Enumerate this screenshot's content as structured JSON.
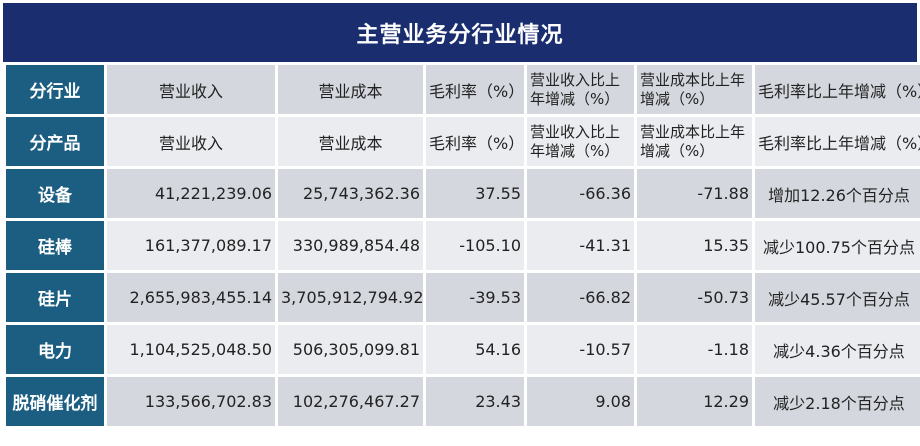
{
  "title": "主营业务分行业情况",
  "rows": [
    {
      "label": "分行业",
      "revenue": "营业收入",
      "cost": "营业成本",
      "margin": "毛利率（%）",
      "rev_change": "营业收入比上年增减（%）",
      "cost_change": "营业成本比上年增减（%）",
      "margin_change": "毛利率比上年增减（%）"
    },
    {
      "label": "分产品",
      "revenue": "营业收入",
      "cost": "营业成本",
      "margin": "毛利率（%）",
      "rev_change": "营业收入比上年增减（%）",
      "cost_change": "营业成本比上年增减（%）",
      "margin_change": "毛利率比上年增减（%）"
    },
    {
      "label": "设备",
      "revenue": "41,221,239.06",
      "cost": "25,743,362.36",
      "margin": "37.55",
      "rev_change": "-66.36",
      "cost_change": "-71.88",
      "margin_change": "增加12.26个百分点"
    },
    {
      "label": "硅棒",
      "revenue": "161,377,089.17",
      "cost": "330,989,854.48",
      "margin": "-105.10",
      "rev_change": "-41.31",
      "cost_change": "15.35",
      "margin_change": "减少100.75个百分点"
    },
    {
      "label": "硅片",
      "revenue": "2,655,983,455.14",
      "cost": "3,705,912,794.92",
      "margin": "-39.53",
      "rev_change": "-66.82",
      "cost_change": "-50.73",
      "margin_change": "减少45.57个百分点"
    },
    {
      "label": "电力",
      "revenue": "1,104,525,048.50",
      "cost": "506,305,099.81",
      "margin": "54.16",
      "rev_change": "-10.57",
      "cost_change": "-1.18",
      "margin_change": "减少4.36个百分点"
    },
    {
      "label": "脱硝催化剂",
      "revenue": "133,566,702.83",
      "cost": "102,276,467.27",
      "margin": "23.43",
      "rev_change": "9.08",
      "cost_change": "12.29",
      "margin_change": "减少2.18个百分点"
    }
  ]
}
